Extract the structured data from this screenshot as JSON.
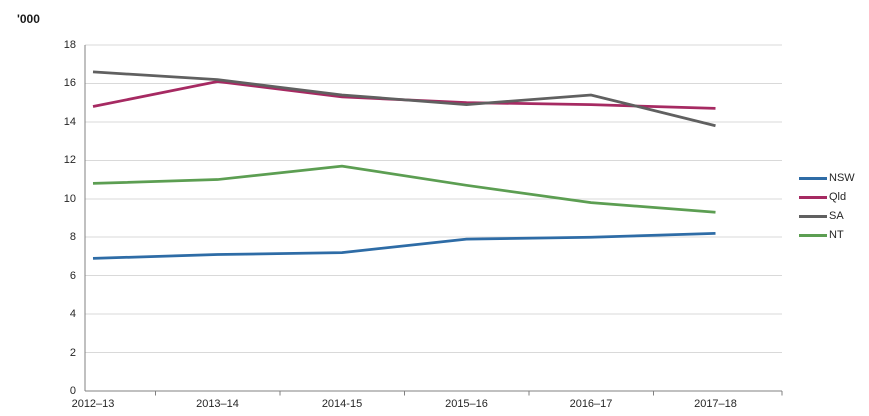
{
  "chart_data": {
    "type": "line",
    "title": "",
    "unit_label": "'000",
    "categories": [
      "2012–13",
      "2013–14",
      "2014-15",
      "2015–16",
      "2016–17",
      "2017–18"
    ],
    "series": [
      {
        "name": "NSW",
        "color": "#2E6CA6",
        "values": [
          6.9,
          7.1,
          7.2,
          7.9,
          8.0,
          8.2
        ]
      },
      {
        "name": "Qld",
        "color": "#A62A62",
        "values": [
          14.8,
          16.1,
          15.3,
          15.0,
          14.9,
          14.7
        ]
      },
      {
        "name": "SA",
        "color": "#606060",
        "values": [
          16.6,
          16.2,
          15.4,
          14.9,
          15.4,
          13.8
        ]
      },
      {
        "name": "NT",
        "color": "#5C9E52",
        "values": [
          10.8,
          11.0,
          11.7,
          10.7,
          9.8,
          9.3
        ]
      }
    ],
    "ylim": [
      0,
      18
    ],
    "ytick_step": 2,
    "grid": "horizontal",
    "legend_position": "right"
  },
  "colors": {
    "background": "#FFFFFF",
    "gridline": "#D9D9D9",
    "axis": "#808080",
    "text": "#262626"
  }
}
